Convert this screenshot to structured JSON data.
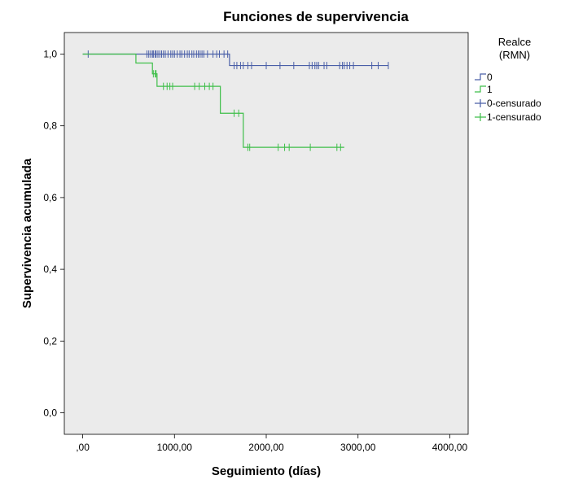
{
  "chart_data": {
    "type": "line",
    "subtype": "kaplan-meier step",
    "title": "Funciones de supervivencia",
    "xlabel": "Seguimiento (días)",
    "ylabel": "Supervivencia acumulada",
    "xlim": [
      -200,
      4200
    ],
    "ylim": [
      -0.06,
      1.06
    ],
    "xticks": [
      0,
      1000,
      2000,
      3000,
      4000
    ],
    "xtick_labels": [
      ",00",
      "1000,00",
      "2000,00",
      "3000,00",
      "4000,00"
    ],
    "yticks": [
      0,
      0.2,
      0.4,
      0.6,
      0.8,
      1.0
    ],
    "ytick_labels": [
      "0,0",
      "0,2",
      "0,4",
      "0,6",
      "0,8",
      "1,0"
    ],
    "grid": false,
    "plot_background": "#ebebeb",
    "legend": {
      "title_lines": [
        "Realce",
        "(RMN)"
      ],
      "placement": "right",
      "entries": [
        "0",
        "1",
        "0-censurado",
        "1-censurado"
      ]
    },
    "series": [
      {
        "name": "0",
        "color": "#4a5fa8",
        "step_x": [
          0,
          1600,
          3330
        ],
        "step_y": [
          1.0,
          0.968,
          0.968
        ],
        "censored_x": [
          60,
          700,
          720,
          740,
          760,
          770,
          790,
          800,
          820,
          840,
          860,
          880,
          900,
          930,
          960,
          980,
          1000,
          1030,
          1060,
          1080,
          1110,
          1140,
          1160,
          1190,
          1210,
          1240,
          1260,
          1280,
          1300,
          1320,
          1360,
          1420,
          1460,
          1490,
          1540,
          1580,
          1650,
          1680,
          1720,
          1750,
          1800,
          1840,
          2000,
          2150,
          2300,
          2470,
          2500,
          2530,
          2550,
          2570,
          2630,
          2660,
          2800,
          2830,
          2850,
          2880,
          2910,
          2950,
          3150,
          3220,
          3330
        ],
        "censored_y": [
          1.0,
          1.0,
          1.0,
          1.0,
          1.0,
          1.0,
          1.0,
          1.0,
          1.0,
          1.0,
          1.0,
          1.0,
          1.0,
          1.0,
          1.0,
          1.0,
          1.0,
          1.0,
          1.0,
          1.0,
          1.0,
          1.0,
          1.0,
          1.0,
          1.0,
          1.0,
          1.0,
          1.0,
          1.0,
          1.0,
          1.0,
          1.0,
          1.0,
          1.0,
          1.0,
          1.0,
          0.968,
          0.968,
          0.968,
          0.968,
          0.968,
          0.968,
          0.968,
          0.968,
          0.968,
          0.968,
          0.968,
          0.968,
          0.968,
          0.968,
          0.968,
          0.968,
          0.968,
          0.968,
          0.968,
          0.968,
          0.968,
          0.968,
          0.968,
          0.968,
          0.968
        ]
      },
      {
        "name": "1",
        "color": "#3fbf4a",
        "step_x": [
          0,
          580,
          760,
          810,
          1500,
          1750,
          2850
        ],
        "step_y": [
          1.0,
          0.975,
          0.945,
          0.91,
          0.835,
          0.74,
          0.74
        ],
        "censored_x": [
          770,
          790,
          800,
          880,
          920,
          950,
          980,
          1220,
          1270,
          1330,
          1380,
          1420,
          1650,
          1700,
          1800,
          1820,
          2130,
          2200,
          2250,
          2480,
          2770,
          2810
        ],
        "censored_y": [
          0.945,
          0.945,
          0.945,
          0.91,
          0.91,
          0.91,
          0.91,
          0.91,
          0.91,
          0.91,
          0.91,
          0.91,
          0.835,
          0.835,
          0.74,
          0.74,
          0.74,
          0.74,
          0.74,
          0.74,
          0.74,
          0.74
        ]
      }
    ]
  }
}
